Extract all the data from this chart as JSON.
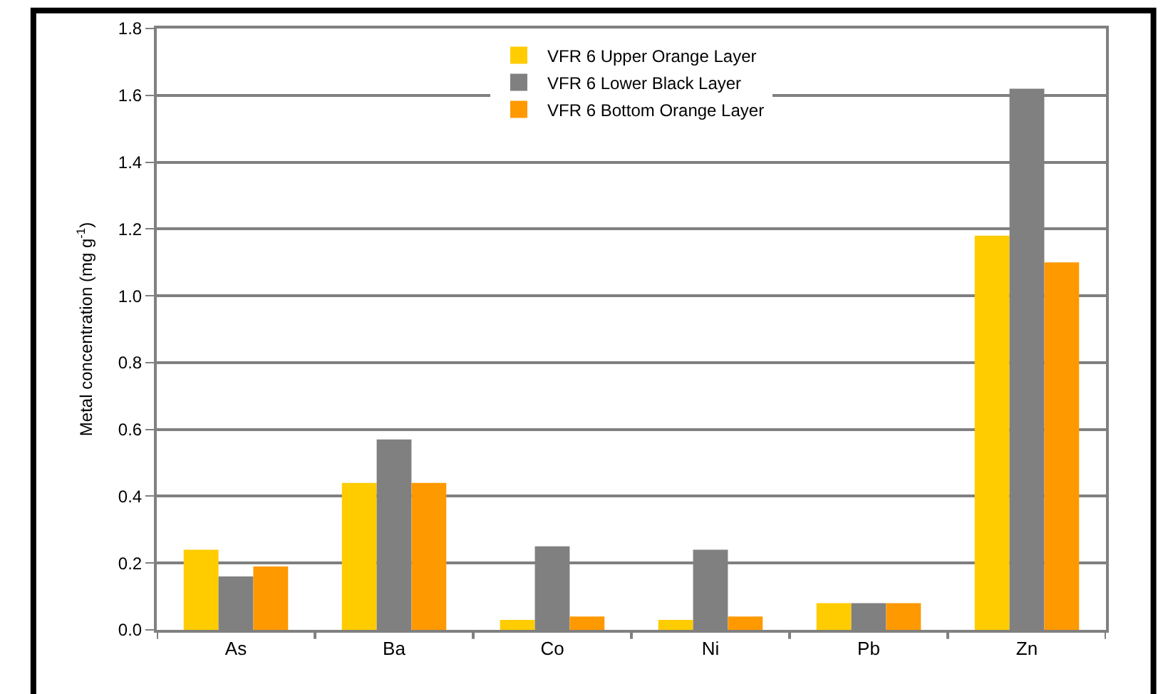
{
  "chart_data": {
    "type": "bar",
    "ylabel": "Metal concentration (mg g$^{-1}$)",
    "categories": [
      "As",
      "Ba",
      "Co",
      "Ni",
      "Pb",
      "Zn"
    ],
    "series": [
      {
        "name": "VFR 6 Upper Orange Layer",
        "color": "#ffcc00",
        "values": [
          0.24,
          0.44,
          0.03,
          0.03,
          0.08,
          1.18
        ]
      },
      {
        "name": "VFR 6 Lower Black Layer",
        "color": "#808080",
        "values": [
          0.16,
          0.57,
          0.25,
          0.24,
          0.08,
          1.62
        ]
      },
      {
        "name": "VFR 6 Bottom Orange Layer",
        "color": "#ff9900",
        "values": [
          0.19,
          0.44,
          0.04,
          0.04,
          0.08,
          1.1
        ]
      }
    ],
    "ylim": [
      0,
      1.8
    ],
    "yticks": [
      "0.0",
      0.2,
      0.4,
      0.6,
      0.8,
      "1.0",
      1.2,
      1.4,
      1.6,
      1.8
    ],
    "grid": "y",
    "legend": "top"
  }
}
